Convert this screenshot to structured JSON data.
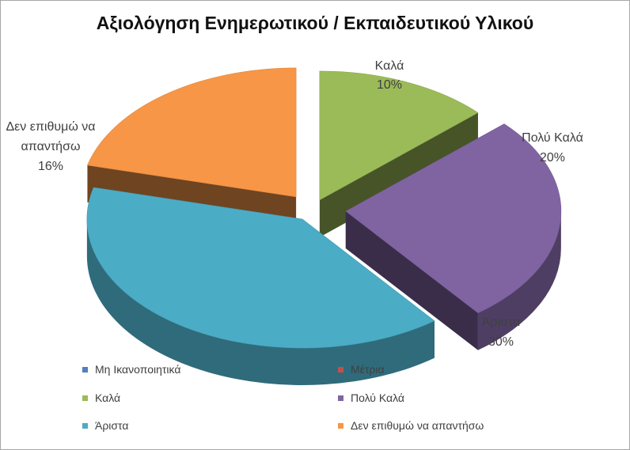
{
  "chart_data": {
    "type": "pie",
    "title": "Αξιολόγηση Ενημερωτικού / Εκπαιδευτικού Υλικού",
    "categories": [
      "Μη Ικανοποιητικά",
      "Μέτρια",
      "Καλά",
      "Πολύ Καλά",
      "Άριστα",
      "Δεν επιθυμώ να απαντήσω"
    ],
    "values": [
      0,
      0,
      10,
      20,
      30,
      16
    ],
    "value_labels": [
      "",
      "",
      "10%",
      "20%",
      "30%",
      "16%"
    ],
    "colors": [
      "#4f81bd",
      "#c0504d",
      "#9bbb59",
      "#8064a2",
      "#4bacc6",
      "#f79646"
    ],
    "exploded": true,
    "three_d": true,
    "legend_position": "bottom"
  }
}
